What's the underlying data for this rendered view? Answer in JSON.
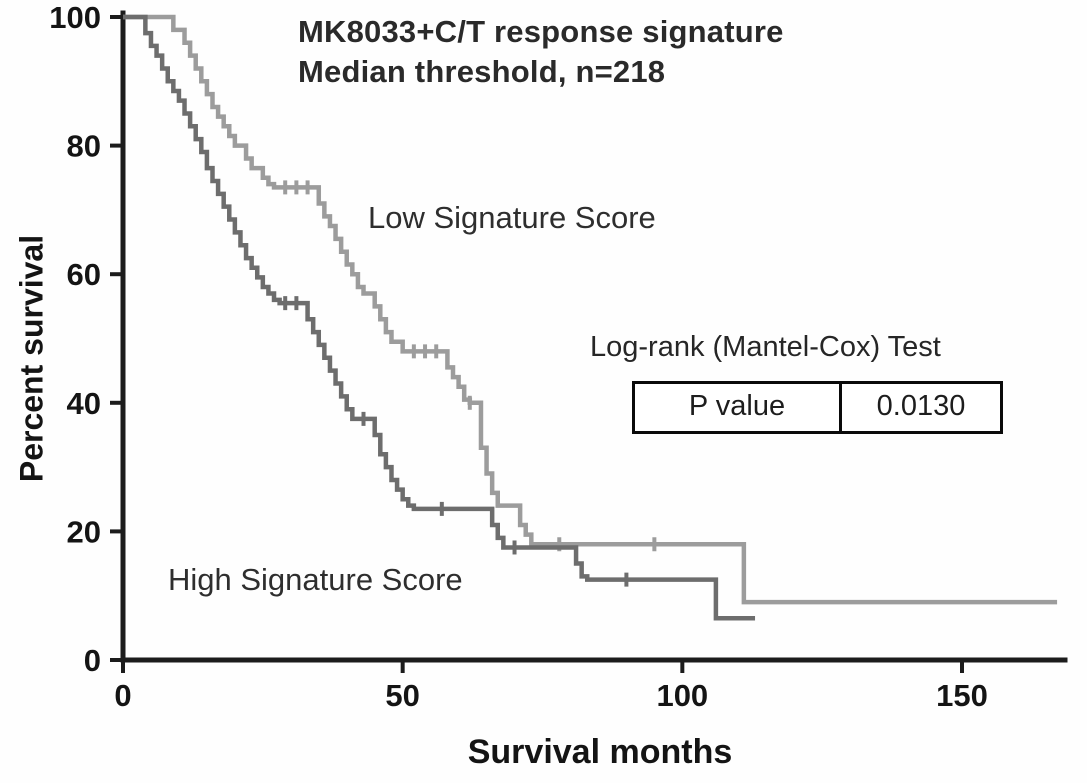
{
  "title": {
    "line1": "MK8033+C/T response signature",
    "line2": "Median threshold, n=218"
  },
  "axes": {
    "x_label": "Survival months",
    "y_label": "Percent survival"
  },
  "annotations": {
    "low_label": "Low Signature Score",
    "high_label": "High Signature Score"
  },
  "stats": {
    "test_label": "Log-rank (Mantel-Cox) Test",
    "p_label": "P value",
    "p_value": "0.0130"
  },
  "colors": {
    "axis": "#1c1c1c",
    "tick_text": "#141414",
    "low_curve": "#9c9c9c",
    "high_curve": "#6d6d6d",
    "table_border": "#0a0a0a"
  },
  "chart_data": {
    "type": "line",
    "subtype": "kaplan-meier-step",
    "title": "MK8033+C/T response signature, Median threshold, n=218",
    "xlabel": "Survival months",
    "ylabel": "Percent survival",
    "xlim": [
      0,
      170
    ],
    "ylim": [
      0,
      100
    ],
    "x_ticks": [
      0,
      50,
      100,
      150
    ],
    "y_ticks": [
      0,
      20,
      40,
      60,
      80,
      100
    ],
    "grid": false,
    "legend_position": "inline-labels",
    "stat_test": {
      "name": "Log-rank (Mantel-Cox) Test",
      "p_value": 0.013
    },
    "series": [
      {
        "name": "Low Signature Score",
        "color": "#9c9c9c",
        "points": [
          [
            0,
            100
          ],
          [
            9,
            98
          ],
          [
            11,
            96
          ],
          [
            12,
            94
          ],
          [
            13,
            92
          ],
          [
            14,
            90
          ],
          [
            15,
            88
          ],
          [
            16,
            86
          ],
          [
            17,
            84.5
          ],
          [
            18,
            83
          ],
          [
            19,
            81.5
          ],
          [
            20,
            80
          ],
          [
            22,
            78
          ],
          [
            23,
            76.5
          ],
          [
            25,
            75
          ],
          [
            26,
            74
          ],
          [
            27,
            73.5
          ],
          [
            35,
            71
          ],
          [
            36,
            69
          ],
          [
            37,
            67.5
          ],
          [
            38,
            65.5
          ],
          [
            39,
            63.5
          ],
          [
            40,
            61.5
          ],
          [
            41,
            60
          ],
          [
            42,
            58
          ],
          [
            43,
            57
          ],
          [
            45,
            55
          ],
          [
            46,
            53
          ],
          [
            47,
            51
          ],
          [
            48,
            49.5
          ],
          [
            50,
            48
          ],
          [
            58,
            45.5
          ],
          [
            59,
            44
          ],
          [
            60,
            42.5
          ],
          [
            61,
            40.5
          ],
          [
            62,
            40
          ],
          [
            64,
            33
          ],
          [
            65,
            29
          ],
          [
            66,
            26
          ],
          [
            67,
            24
          ],
          [
            71,
            21
          ],
          [
            72,
            19.5
          ],
          [
            73,
            18
          ],
          [
            111,
            9
          ],
          [
            167,
            9
          ]
        ],
        "censor_marks": [
          [
            29,
            73.5
          ],
          [
            31,
            73.5
          ],
          [
            33,
            73.5
          ],
          [
            52,
            48
          ],
          [
            54,
            48
          ],
          [
            56,
            48
          ],
          [
            62,
            40
          ],
          [
            78,
            18
          ],
          [
            95,
            18
          ]
        ]
      },
      {
        "name": "High Signature Score",
        "color": "#6d6d6d",
        "points": [
          [
            0,
            100
          ],
          [
            4,
            97.5
          ],
          [
            5,
            95.5
          ],
          [
            6,
            94
          ],
          [
            7,
            92
          ],
          [
            8,
            90
          ],
          [
            9,
            88.5
          ],
          [
            10,
            87
          ],
          [
            11,
            85
          ],
          [
            12,
            83
          ],
          [
            13,
            81
          ],
          [
            14,
            79
          ],
          [
            15,
            76.5
          ],
          [
            16,
            74.5
          ],
          [
            17,
            72.5
          ],
          [
            18,
            70.5
          ],
          [
            19,
            68.5
          ],
          [
            20,
            66.5
          ],
          [
            21,
            64.5
          ],
          [
            22,
            62.5
          ],
          [
            23,
            61
          ],
          [
            24,
            59.5
          ],
          [
            25,
            58
          ],
          [
            26,
            57
          ],
          [
            27,
            56
          ],
          [
            28,
            55.5
          ],
          [
            33,
            53
          ],
          [
            34,
            51
          ],
          [
            35,
            49
          ],
          [
            36,
            47
          ],
          [
            37,
            45
          ],
          [
            38,
            43
          ],
          [
            39,
            41
          ],
          [
            40,
            39
          ],
          [
            41,
            37.5
          ],
          [
            45,
            35
          ],
          [
            46,
            32
          ],
          [
            47,
            30
          ],
          [
            48,
            28
          ],
          [
            49,
            26.5
          ],
          [
            50,
            25
          ],
          [
            51,
            24
          ],
          [
            52,
            23.5
          ],
          [
            66,
            21
          ],
          [
            67,
            19
          ],
          [
            68,
            17.5
          ],
          [
            81,
            15
          ],
          [
            82,
            13
          ],
          [
            83,
            12.5
          ],
          [
            106,
            6.5
          ],
          [
            113,
            6.5
          ]
        ],
        "censor_marks": [
          [
            29,
            55.5
          ],
          [
            31,
            55.5
          ],
          [
            43,
            37.5
          ],
          [
            57,
            23.5
          ],
          [
            70,
            17.5
          ],
          [
            90,
            12.5
          ]
        ]
      }
    ]
  }
}
